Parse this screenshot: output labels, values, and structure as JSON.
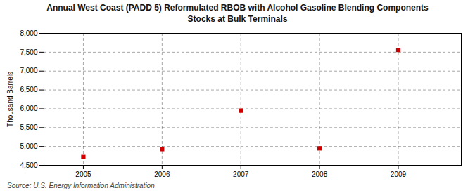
{
  "chart_data": {
    "type": "scatter",
    "title": "Annual West Coast (PADD 5) Reformulated RBOB with Alcohol Gasoline Blending Components\nStocks at Bulk Terminals",
    "ylabel": "Thousand Barrels",
    "source": "Source: U.S. Energy Information Administration",
    "x": [
      2005,
      2006,
      2007,
      2008,
      2009
    ],
    "values": [
      4720,
      4930,
      5950,
      4950,
      7560
    ],
    "color": "#cc0000",
    "marker": "square",
    "xlim": [
      2004.5,
      2009.8
    ],
    "xticks": [
      2005,
      2006,
      2007,
      2008,
      2009
    ],
    "ylim": [
      4500,
      8000
    ],
    "yticks": [
      {
        "value": 4500,
        "label": "4,500"
      },
      {
        "value": 5000,
        "label": "5,000"
      },
      {
        "value": 5500,
        "label": "5,500"
      },
      {
        "value": 6000,
        "label": "6,000"
      },
      {
        "value": 6500,
        "label": "6,500"
      },
      {
        "value": 7000,
        "label": "7,000"
      },
      {
        "value": 7500,
        "label": "7,500"
      },
      {
        "value": 8000,
        "label": "8,000"
      }
    ],
    "grid": true
  }
}
